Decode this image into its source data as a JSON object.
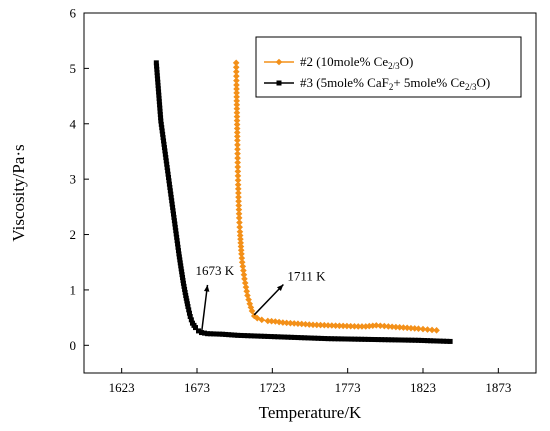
{
  "chart_data": {
    "type": "line",
    "xlabel": "Temperature/K",
    "ylabel": "Viscosity/Pa·s",
    "xlim": [
      1598,
      1898
    ],
    "ylim": [
      -0.5,
      6
    ],
    "x_ticks": [
      1623,
      1673,
      1723,
      1773,
      1823,
      1873
    ],
    "y_ticks": [
      0,
      1,
      2,
      3,
      4,
      5,
      6
    ],
    "grid": false,
    "legend_position": "top-right",
    "series": [
      {
        "name": "#2 (10mole% Ce2/3O)",
        "legend": {
          "prefix": "#2 (10mole% Ce",
          "sub1": "2/3",
          "suffix": "O)"
        },
        "color": "#f39019",
        "marker": "diamond",
        "x": [
          1699.0,
          1699.2,
          1699.5,
          1699.8,
          1700.0,
          1700.3,
          1700.6,
          1701.0,
          1701.5,
          1702.0,
          1702.5,
          1703.0,
          1703.8,
          1704.5,
          1705.5,
          1706.5,
          1708.0,
          1709.5,
          1711.0,
          1713.0,
          1716.0,
          1720.0,
          1725.0,
          1730.0,
          1740.0,
          1750.0,
          1760.0,
          1770.0,
          1780.0,
          1785.0,
          1792.0,
          1800.0,
          1810.0,
          1820.0,
          1832.0
        ],
        "y": [
          5.1,
          4.7,
          4.2,
          3.7,
          3.3,
          2.9,
          2.6,
          2.3,
          2.05,
          1.85,
          1.65,
          1.5,
          1.35,
          1.2,
          1.05,
          0.9,
          0.75,
          0.62,
          0.53,
          0.49,
          0.46,
          0.44,
          0.43,
          0.41,
          0.39,
          0.37,
          0.36,
          0.35,
          0.34,
          0.34,
          0.36,
          0.34,
          0.32,
          0.3,
          0.27
        ]
      },
      {
        "name": "#3 (5mole% CaF2+ 5mole% Ce2/3O)",
        "legend": {
          "prefix": "#3 (5mole% CaF",
          "sub1": "2",
          "middle": "+ 5mole% Ce",
          "sub2": "2/3",
          "suffix": "O)"
        },
        "color": "#000000",
        "marker": "square",
        "x": [
          1646.0,
          1647.0,
          1648.0,
          1649.0,
          1650.5,
          1652.0,
          1653.5,
          1655.0,
          1656.5,
          1658.0,
          1659.5,
          1661.0,
          1662.5,
          1664.0,
          1665.5,
          1667.0,
          1668.5,
          1670.0,
          1672.0,
          1674.0,
          1676.0,
          1680.0,
          1690.0,
          1700.0,
          1720.0,
          1740.0,
          1760.0,
          1780.0,
          1800.0,
          1820.0,
          1830.0,
          1841.0
        ],
        "y": [
          5.1,
          4.75,
          4.4,
          4.05,
          3.75,
          3.45,
          3.15,
          2.85,
          2.55,
          2.25,
          1.95,
          1.65,
          1.38,
          1.12,
          0.9,
          0.7,
          0.52,
          0.4,
          0.32,
          0.26,
          0.23,
          0.21,
          0.2,
          0.18,
          0.16,
          0.14,
          0.12,
          0.11,
          0.1,
          0.09,
          0.08,
          0.07
        ]
      }
    ],
    "annotations": [
      {
        "text": "1673 K",
        "x": 1676,
        "y": 0.22,
        "text_x": 1672,
        "text_y": 1.27
      },
      {
        "text": "1711 K",
        "x": 1711,
        "y": 0.55,
        "text_x": 1733,
        "text_y": 1.17
      }
    ]
  }
}
